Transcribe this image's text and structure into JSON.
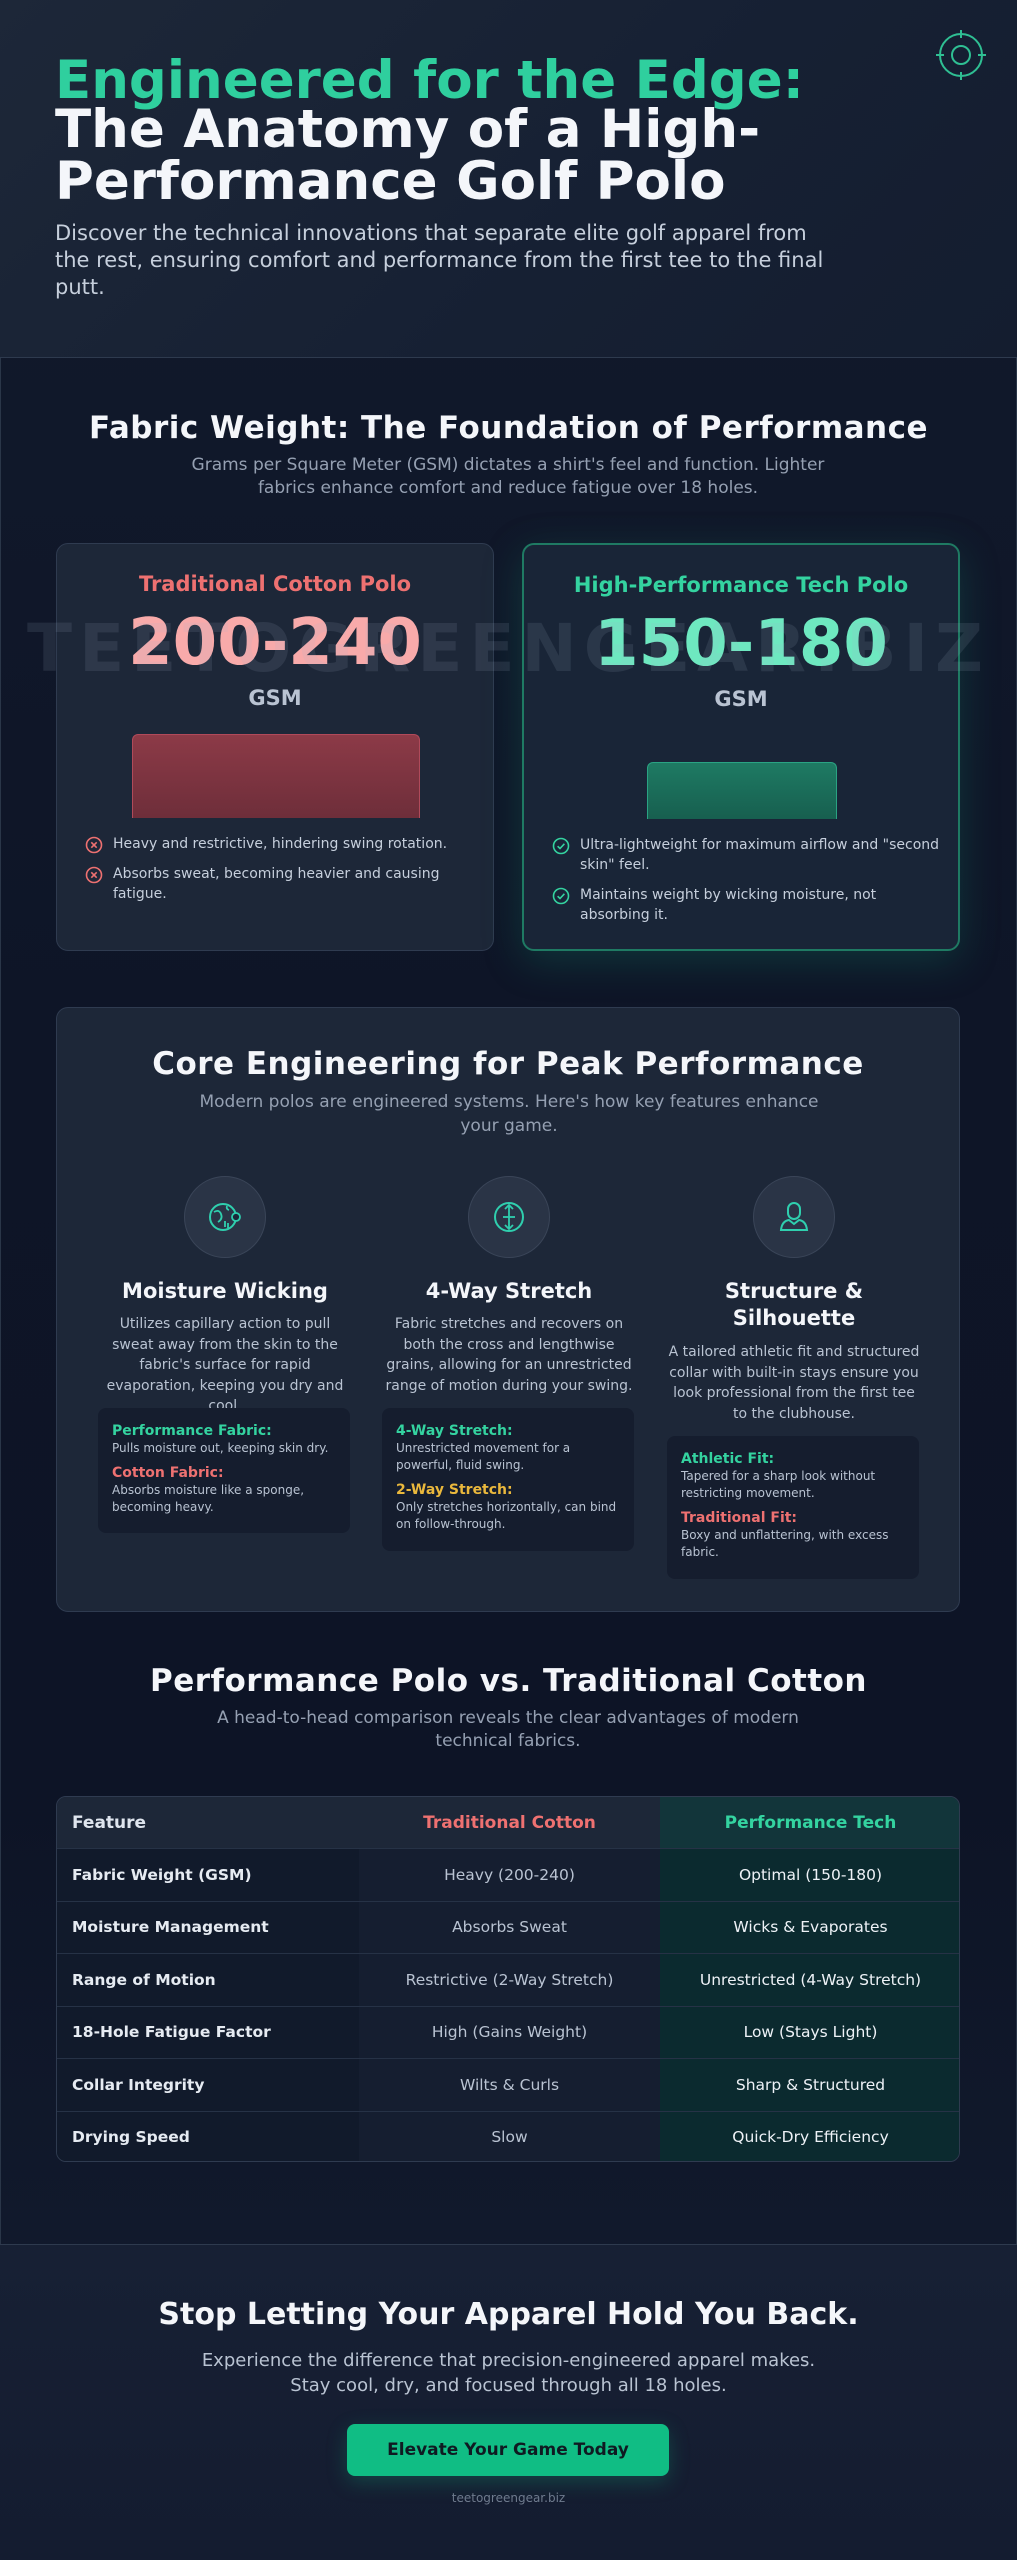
{
  "hero": {
    "title_accent": "Engineered for the Edge:",
    "title": "The Anatomy of a High-Performance Golf Polo",
    "subtitle": "Discover the technical innovations that separate elite golf apparel from the rest, ensuring comfort and performance from the first tee to the final putt.",
    "logo_icon": "crosshair-target-icon"
  },
  "watermark": "TEETOGREENGEAR.BIZ",
  "fabric": {
    "title": "Fabric Weight: The Foundation of Performance",
    "subtitle": "Grams per Square Meter (GSM) dictates a shirt's feel and function. Lighter fabrics enhance comfort and reduce fatigue over 18 holes.",
    "traditional": {
      "label": "Traditional Cotton Polo",
      "value": "200-240",
      "unit": "GSM",
      "bar_fraction": 1.0,
      "points": [
        "Heavy and restrictive, hindering swing rotation.",
        "Absorbs sweat, becoming heavier and causing fatigue."
      ]
    },
    "tech": {
      "label": "High-Performance Tech Polo",
      "value": "150-180",
      "unit": "GSM",
      "bar_fraction": 0.68,
      "points": [
        "Ultra-lightweight for maximum airflow and \"second skin\" feel.",
        "Maintains weight by wicking moisture, not absorbing it."
      ]
    },
    "colors": {
      "traditional": "#ee7171",
      "tech": "#34d3a0"
    }
  },
  "core": {
    "title": "Core Engineering for Peak Performance",
    "subtitle": "Modern polos are engineered systems. Here's how key features enhance your game.",
    "features": [
      {
        "icon": "globe-droplet-icon",
        "title": "Moisture Wicking",
        "desc": "Utilizes capillary action to pull sweat away from the skin to the fabric's surface for rapid evaporation, keeping you dry and cool.",
        "box": [
          {
            "heading": "Performance Fabric:",
            "text": "Pulls moisture out, keeping skin dry.",
            "tone": "green"
          },
          {
            "heading": "Cotton Fabric:",
            "text": "Absorbs moisture like a sponge, becoming heavy.",
            "tone": "red"
          }
        ]
      },
      {
        "icon": "stretch-arrows-icon",
        "title": "4-Way Stretch",
        "desc": "Fabric stretches and recovers on both the cross and lengthwise grains, allowing for an unrestricted range of motion during your swing.",
        "box": [
          {
            "heading": "4-Way Stretch:",
            "text": "Unrestricted movement for a powerful, fluid swing.",
            "tone": "green"
          },
          {
            "heading": "2-Way Stretch:",
            "text": "Only stretches horizontally, can bind on follow-through.",
            "tone": "yellow"
          }
        ]
      },
      {
        "icon": "user-silhouette-icon",
        "title": "Structure & Silhouette",
        "desc": "A tailored athletic fit and structured collar with built-in stays ensure you look professional from the first tee to the clubhouse.",
        "box": [
          {
            "heading": "Athletic Fit:",
            "text": "Tapered for a sharp look without restricting movement.",
            "tone": "green"
          },
          {
            "heading": "Traditional Fit:",
            "text": "Boxy and unflattering, with excess fabric.",
            "tone": "red"
          }
        ]
      }
    ]
  },
  "comparison": {
    "title": "Performance Polo vs. Traditional Cotton",
    "subtitle": "A head-to-head comparison reveals the clear advantages of modern technical fabrics.",
    "headers": [
      "Feature",
      "Traditional Cotton",
      "Performance Tech"
    ],
    "rows": [
      [
        "Fabric Weight (GSM)",
        "Heavy (200-240)",
        "Optimal (150-180)"
      ],
      [
        "Moisture Management",
        "Absorbs Sweat",
        "Wicks & Evaporates"
      ],
      [
        "Range of Motion",
        "Restrictive (2-Way Stretch)",
        "Unrestricted (4-Way Stretch)"
      ],
      [
        "18-Hole Fatigue Factor",
        "High (Gains Weight)",
        "Low (Stays Light)"
      ],
      [
        "Collar Integrity",
        "Wilts & Curls",
        "Sharp & Structured"
      ],
      [
        "Drying Speed",
        "Slow",
        "Quick-Dry Efficiency"
      ]
    ]
  },
  "cta": {
    "title": "Stop Letting Your Apparel Hold You Back.",
    "subtitle": "Experience the difference that precision-engineered apparel makes. Stay cool, dry, and focused through all 18 holes.",
    "button": "Elevate Your Game Today",
    "site": "teetogreengear.biz"
  }
}
